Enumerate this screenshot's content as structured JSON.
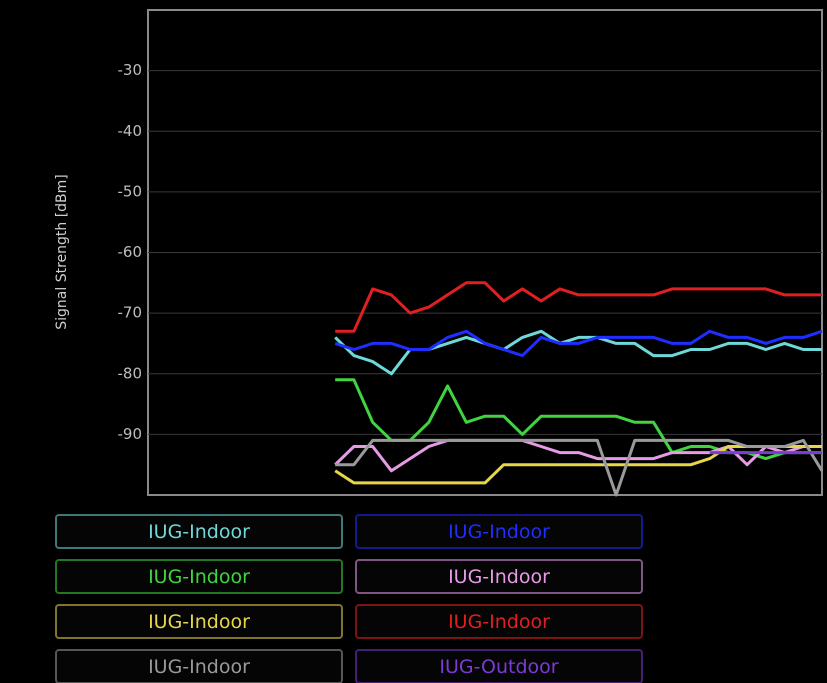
{
  "chart_data": {
    "type": "line",
    "y_label": "Signal Strength [dBm]",
    "ylim": [
      -100,
      -20
    ],
    "yticks": [
      -90,
      -80,
      -70,
      -60,
      -50,
      -40,
      -30
    ],
    "grid": true,
    "categories": [
      null,
      null,
      null,
      null,
      null,
      null,
      null,
      null,
      null,
      null,
      null,
      null,
      null,
      null,
      null,
      null,
      null,
      null,
      null,
      null,
      null,
      null,
      null,
      null,
      null,
      null,
      null,
      null,
      null,
      null,
      null,
      null,
      null,
      null,
      null,
      null,
      null
    ],
    "series": [
      {
        "name": "IUG-Indoor",
        "color": "#6fd8d8",
        "values": [
          null,
          null,
          null,
          null,
          null,
          null,
          null,
          null,
          null,
          null,
          -74,
          -77,
          -78,
          -80,
          -76,
          -76,
          -75,
          -74,
          -75,
          -76,
          -74,
          -73,
          -75,
          -74,
          -74,
          -75,
          -75,
          -77,
          -77,
          -76,
          -76,
          -75,
          -75,
          -76,
          -75,
          -76,
          -76
        ]
      },
      {
        "name": "IUG-Indoor",
        "color": "#1f2eff",
        "values": [
          null,
          null,
          null,
          null,
          null,
          null,
          null,
          null,
          null,
          null,
          -75,
          -76,
          -75,
          -75,
          -76,
          -76,
          -74,
          -73,
          -75,
          -76,
          -77,
          -74,
          -75,
          -75,
          -74,
          -74,
          -74,
          -74,
          -75,
          -75,
          -73,
          -74,
          -74,
          -75,
          -74,
          -74,
          -73
        ]
      },
      {
        "name": "IUG-Indoor",
        "color": "#40d440",
        "values": [
          null,
          null,
          null,
          null,
          null,
          null,
          null,
          null,
          null,
          null,
          -81,
          -81,
          -88,
          -91,
          -91,
          -88,
          -82,
          -88,
          -87,
          -87,
          -90,
          -87,
          -87,
          -87,
          -87,
          -87,
          -88,
          -88,
          -93,
          -92,
          -92,
          -93,
          -93,
          -94,
          -93,
          -93,
          -93
        ]
      },
      {
        "name": "IUG-Indoor",
        "color": "#e59be5",
        "values": [
          null,
          null,
          null,
          null,
          null,
          null,
          null,
          null,
          null,
          null,
          -95,
          -92,
          -92,
          -96,
          -94,
          -92,
          -91,
          -91,
          -91,
          -91,
          -91,
          -92,
          -93,
          -93,
          -94,
          -94,
          -94,
          -94,
          -93,
          -93,
          -93,
          -92,
          -95,
          -92,
          -93,
          -92,
          -92
        ]
      },
      {
        "name": "IUG-Indoor",
        "color": "#e5d64a",
        "values": [
          null,
          null,
          null,
          null,
          null,
          null,
          null,
          null,
          null,
          null,
          -96,
          -98,
          -98,
          -98,
          -98,
          -98,
          -98,
          -98,
          -98,
          -95,
          -95,
          -95,
          -95,
          -95,
          -95,
          -95,
          -95,
          -95,
          -95,
          -95,
          -94,
          -92,
          -92,
          -92,
          -92,
          -92,
          -92
        ]
      },
      {
        "name": "IUG-Indoor",
        "color": "#e02020",
        "values": [
          null,
          null,
          null,
          null,
          null,
          null,
          null,
          null,
          null,
          null,
          -73,
          -73,
          -66,
          -67,
          -70,
          -69,
          -67,
          -65,
          -65,
          -68,
          -66,
          -68,
          -66,
          -67,
          -67,
          -67,
          -67,
          -67,
          -66,
          -66,
          -66,
          -66,
          -66,
          -66,
          -67,
          -67,
          -67
        ]
      },
      {
        "name": "IUG-Indoor",
        "color": "#9a9a9a",
        "values": [
          null,
          null,
          null,
          null,
          null,
          null,
          null,
          null,
          null,
          null,
          -95,
          -95,
          -91,
          -91,
          -91,
          -91,
          -91,
          -91,
          -91,
          -91,
          -91,
          -91,
          -91,
          -91,
          -91,
          -100,
          -91,
          -91,
          -91,
          -91,
          -91,
          -91,
          -92,
          -92,
          -92,
          -91,
          -96
        ]
      },
      {
        "name": "IUG-Outdoor",
        "color": "#7b3bd6",
        "values": [
          null,
          null,
          null,
          null,
          null,
          null,
          null,
          null,
          null,
          null,
          null,
          null,
          null,
          null,
          null,
          null,
          null,
          null,
          null,
          null,
          null,
          null,
          null,
          null,
          null,
          null,
          null,
          null,
          null,
          null,
          -93,
          -93,
          -93,
          -93,
          -93,
          -93,
          -93
        ]
      }
    ]
  }
}
